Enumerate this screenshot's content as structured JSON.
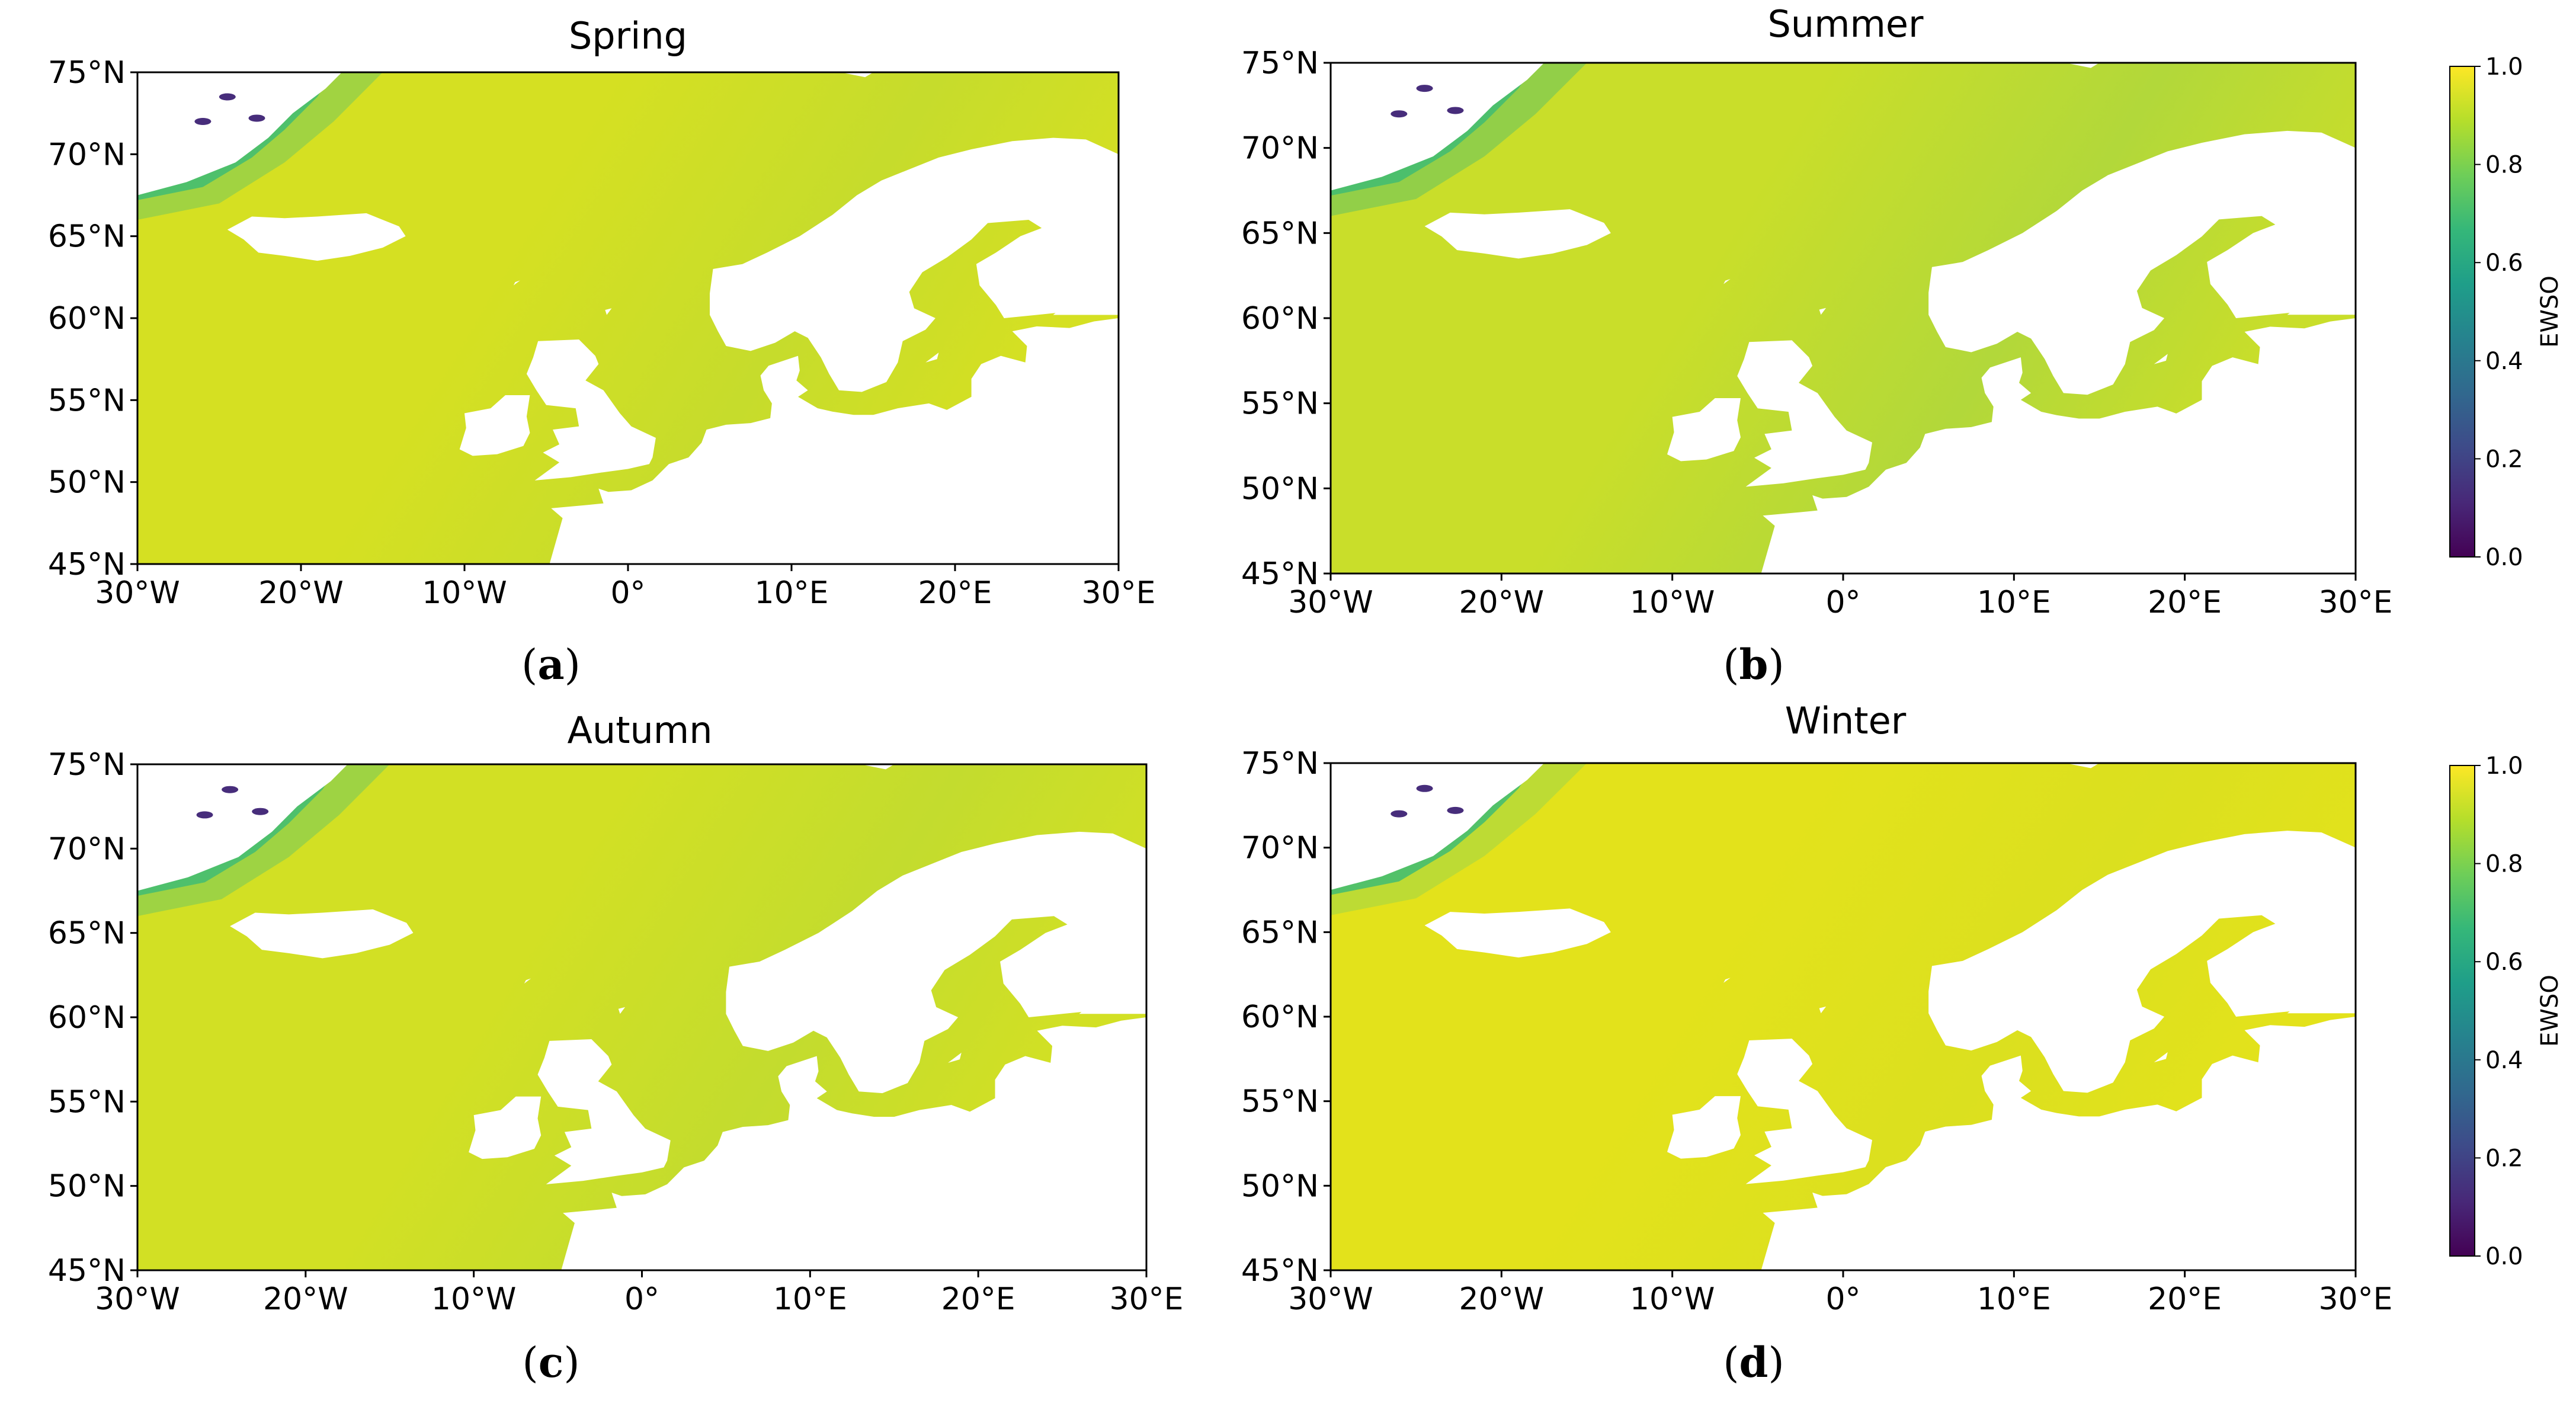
{
  "colors": {
    "ocean_base": "#d7e023",
    "land": "#ffffff",
    "accent_green": "#2fb47c"
  },
  "panels": [
    {
      "id": "a",
      "title": "Spring",
      "caption_letter": "a",
      "ocean": "#d5e022",
      "shelf": "#c6dc2c",
      "north": "#9bd245"
    },
    {
      "id": "b",
      "title": "Summer",
      "caption_letter": "b",
      "ocean": "#c9de2a",
      "shelf": "#b2d83a",
      "north": "#8ccd4b"
    },
    {
      "id": "c",
      "title": "Autumn",
      "caption_letter": "c",
      "ocean": "#d2e024",
      "shelf": "#c3dc2e",
      "north": "#98d147"
    },
    {
      "id": "d",
      "title": "Winter",
      "caption_letter": "d",
      "ocean": "#e3e21b",
      "shelf": "#dbe01f",
      "north": "#b8da37"
    }
  ],
  "map": {
    "lon_range": [
      -30,
      30
    ],
    "lat_range": [
      45,
      75
    ],
    "x_ticks": [
      "30°W",
      "20°W",
      "10°W",
      "0°",
      "10°E",
      "20°E",
      "30°E"
    ],
    "y_ticks": [
      "75°N",
      "70°N",
      "65°N",
      "60°N",
      "55°N",
      "50°N",
      "45°N"
    ]
  },
  "colorbar": {
    "label": "EWSO",
    "ticks": [
      "1.0",
      "0.8",
      "0.6",
      "0.4",
      "0.2",
      "0.0"
    ],
    "range": [
      0.0,
      1.0
    ],
    "colormap": "viridis"
  }
}
